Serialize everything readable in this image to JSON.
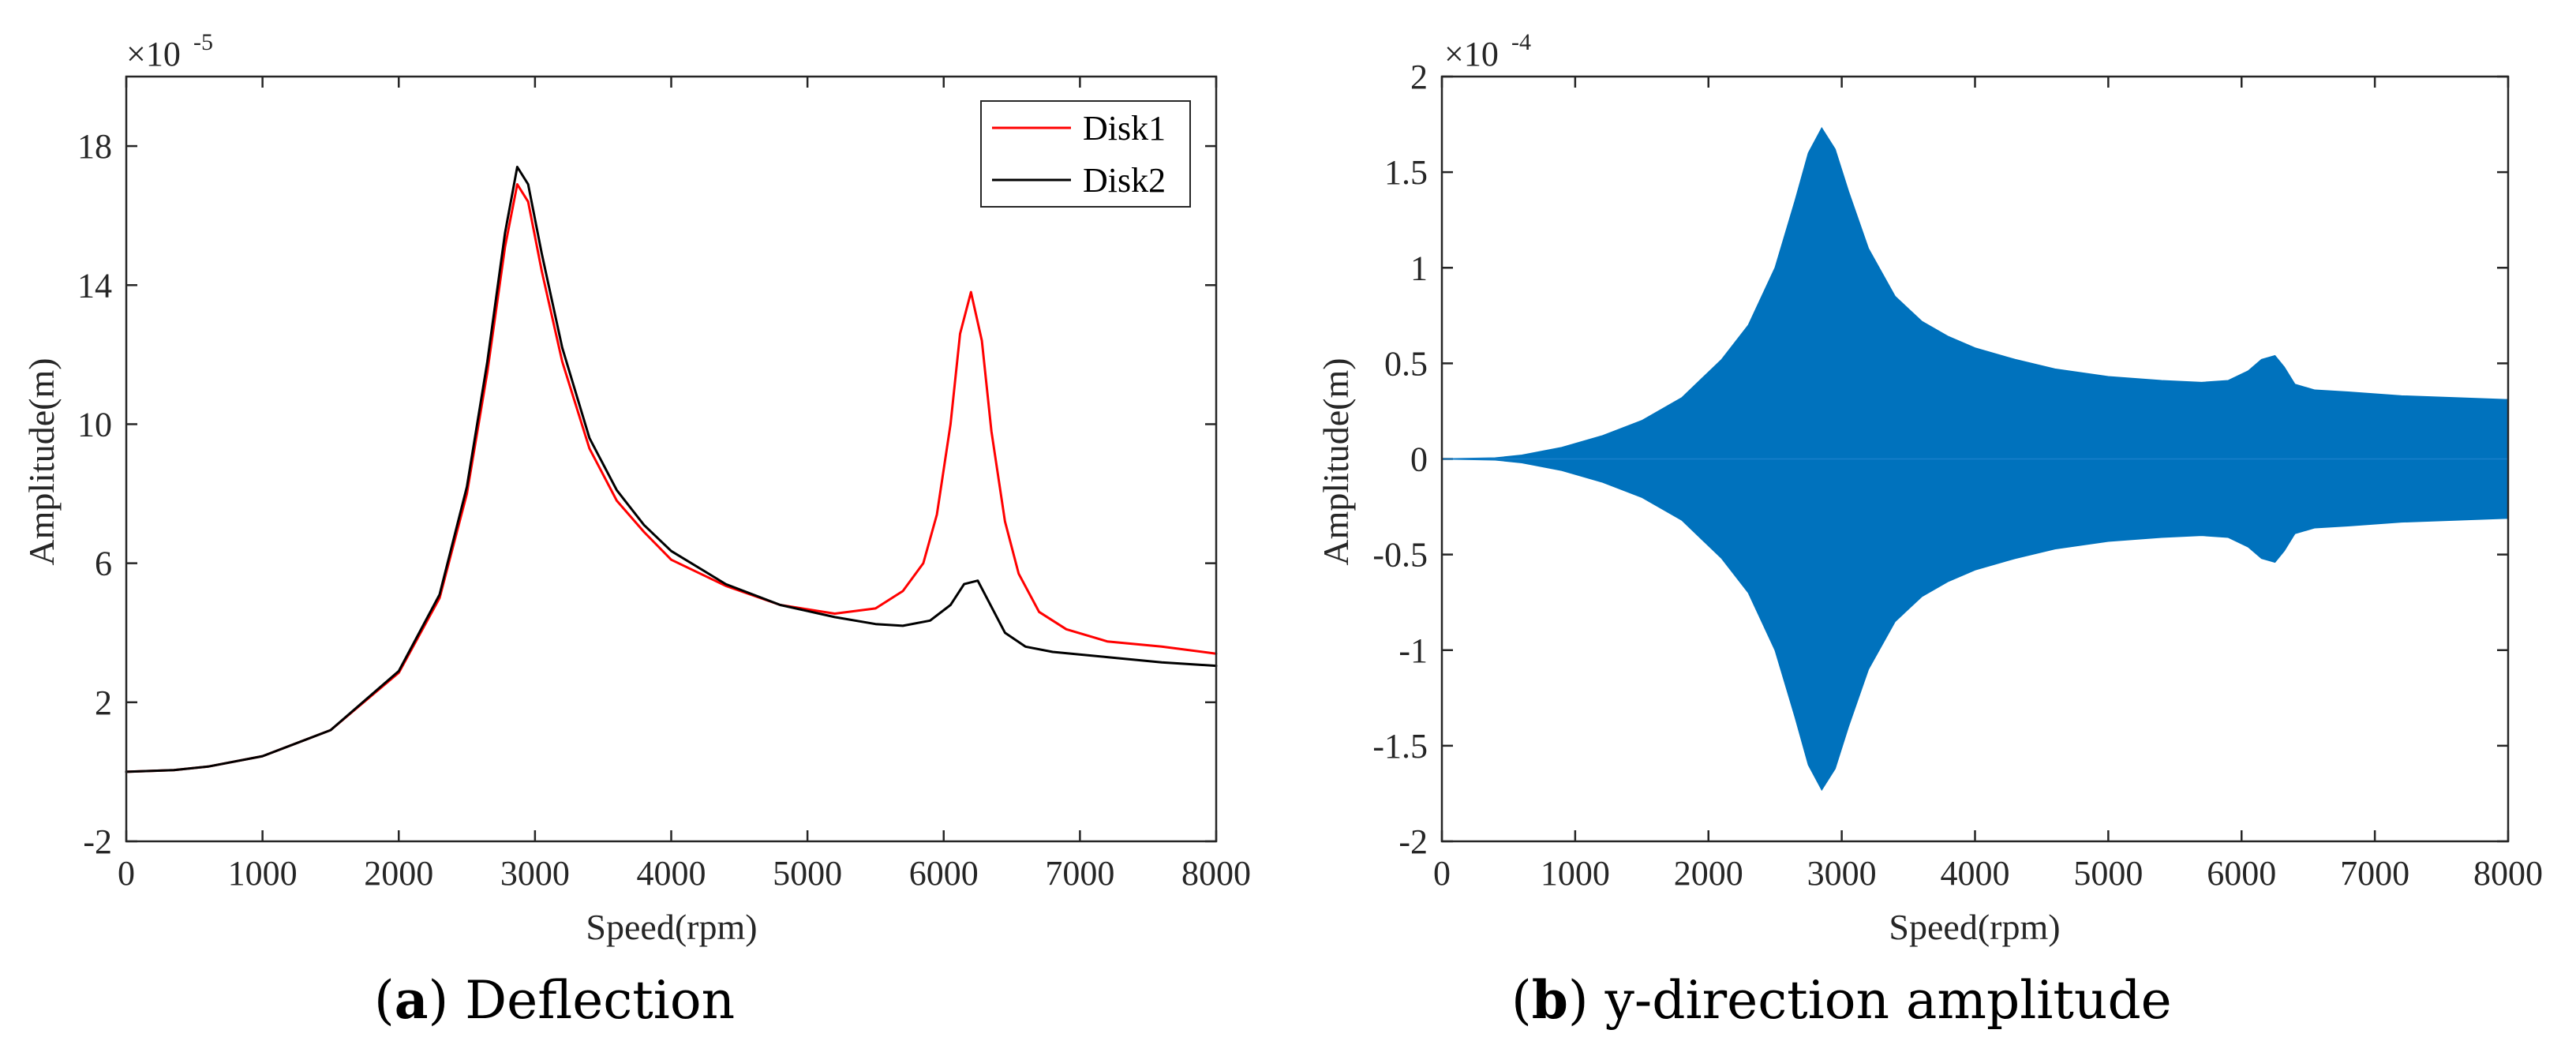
{
  "chart_data": [
    {
      "type": "line",
      "id": "a",
      "caption_letter": "a",
      "caption_text": "Deflection",
      "xlabel": "Speed(rpm)",
      "ylabel": "Amplitude(m)",
      "xlim": [
        0,
        8000
      ],
      "ylim": [
        -2,
        20
      ],
      "xticks": [
        0,
        1000,
        2000,
        3000,
        4000,
        5000,
        6000,
        7000,
        8000
      ],
      "yticks": [
        -2,
        2,
        6,
        10,
        14,
        18
      ],
      "y_exponent_base": "×10",
      "y_exponent": "-5",
      "legend_position": "top-right",
      "series": [
        {
          "name": "Disk1",
          "color": "#ff0000",
          "x": [
            0,
            350,
            600,
            1000,
            1500,
            2000,
            2300,
            2500,
            2650,
            2780,
            2870,
            2950,
            3050,
            3200,
            3400,
            3600,
            3800,
            4000,
            4400,
            4800,
            5200,
            5500,
            5700,
            5850,
            5950,
            6050,
            6120,
            6200,
            6280,
            6350,
            6450,
            6550,
            6700,
            6900,
            7200,
            7600,
            8000
          ],
          "y": [
            0,
            0.05,
            0.15,
            0.45,
            1.2,
            2.85,
            5.0,
            8.0,
            11.5,
            15.1,
            16.9,
            16.4,
            14.4,
            11.8,
            9.3,
            7.8,
            6.9,
            6.1,
            5.35,
            4.8,
            4.55,
            4.7,
            5.2,
            6.0,
            7.4,
            10.0,
            12.6,
            13.8,
            12.4,
            9.8,
            7.2,
            5.7,
            4.6,
            4.1,
            3.75,
            3.6,
            3.4
          ]
        },
        {
          "name": "Disk2",
          "color": "#000000",
          "x": [
            0,
            350,
            600,
            1000,
            1500,
            2000,
            2300,
            2500,
            2650,
            2780,
            2870,
            2950,
            3050,
            3200,
            3400,
            3600,
            3800,
            4000,
            4400,
            4800,
            5200,
            5500,
            5700,
            5900,
            6050,
            6150,
            6250,
            6330,
            6450,
            6600,
            6800,
            7200,
            7600,
            8000
          ],
          "y": [
            0,
            0.05,
            0.15,
            0.45,
            1.2,
            2.9,
            5.1,
            8.2,
            11.8,
            15.5,
            17.4,
            16.9,
            14.9,
            12.2,
            9.6,
            8.1,
            7.1,
            6.35,
            5.4,
            4.8,
            4.45,
            4.25,
            4.2,
            4.35,
            4.8,
            5.4,
            5.5,
            4.9,
            4.0,
            3.6,
            3.45,
            3.3,
            3.15,
            3.05
          ]
        }
      ]
    },
    {
      "type": "line",
      "id": "b",
      "caption_letter": "b",
      "caption_text": "y-direction amplitude",
      "xlabel": "Speed(rpm)",
      "ylabel": "Amplitude(m)",
      "xlim": [
        0,
        8000
      ],
      "ylim": [
        -2,
        2
      ],
      "xticks": [
        0,
        1000,
        2000,
        3000,
        4000,
        5000,
        6000,
        7000,
        8000
      ],
      "yticks": [
        -2,
        -1.5,
        -1,
        -0.5,
        0,
        0.5,
        1,
        1.5,
        2
      ],
      "y_exponent_base": "×10",
      "y_exponent": "-4",
      "series": [
        {
          "name": "y-direction envelope",
          "color": "#0072bd",
          "fill": "symmetric",
          "x": [
            0,
            400,
            600,
            900,
            1200,
            1500,
            1800,
            2100,
            2300,
            2500,
            2650,
            2750,
            2850,
            2950,
            3050,
            3200,
            3400,
            3600,
            3800,
            4000,
            4300,
            4600,
            5000,
            5400,
            5700,
            5900,
            6050,
            6150,
            6250,
            6320,
            6400,
            6550,
            6800,
            7200,
            7600,
            8000
          ],
          "y": [
            0,
            0.005,
            0.02,
            0.06,
            0.12,
            0.2,
            0.32,
            0.52,
            0.7,
            1.0,
            1.35,
            1.6,
            1.73,
            1.62,
            1.4,
            1.1,
            0.85,
            0.72,
            0.64,
            0.58,
            0.52,
            0.47,
            0.43,
            0.41,
            0.4,
            0.41,
            0.46,
            0.52,
            0.54,
            0.48,
            0.39,
            0.36,
            0.35,
            0.33,
            0.32,
            0.31
          ]
        }
      ]
    }
  ]
}
